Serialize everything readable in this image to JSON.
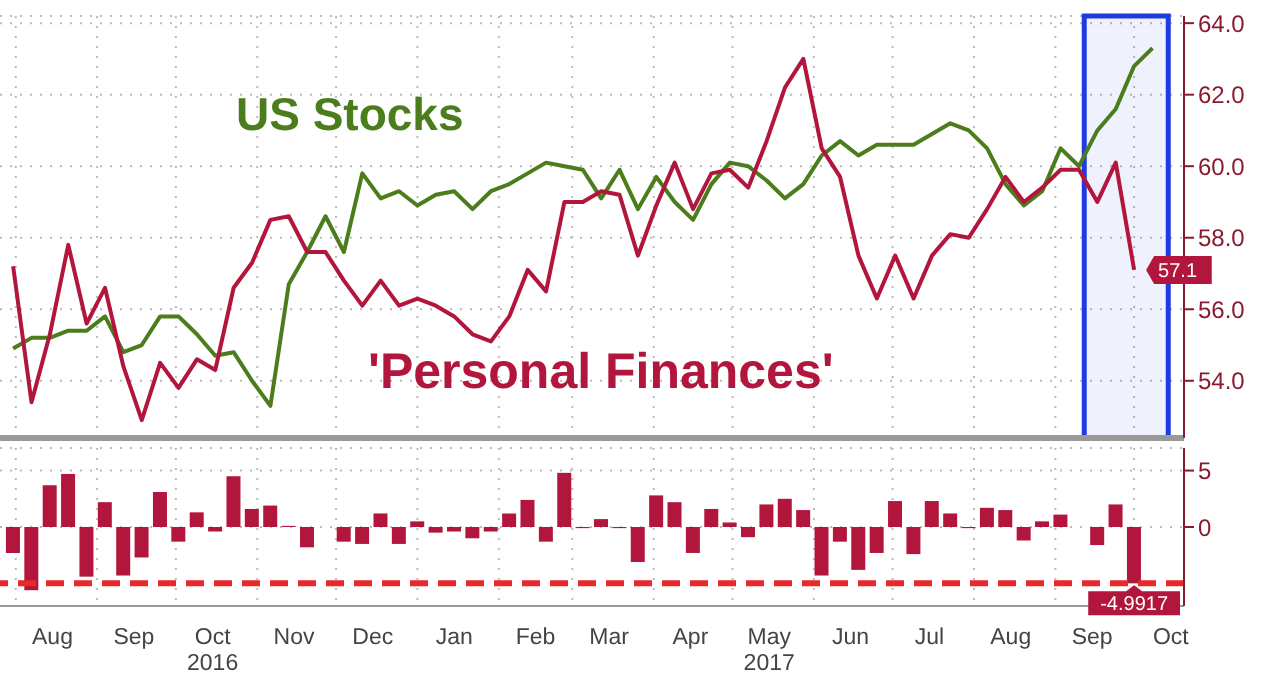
{
  "chart_data": [
    {
      "type": "line",
      "tick_labels": "y",
      "grid": true,
      "legend": false,
      "xlim": [
        "2016-07-26",
        "2017-10-20"
      ],
      "xticks": [
        {
          "value": "2016-08-01",
          "label": null
        },
        {
          "value": "2016-09-01",
          "label": null
        },
        {
          "value": "2016-10-01",
          "label": null
        },
        {
          "value": "2016-11-01",
          "label": null
        },
        {
          "value": "2016-12-01",
          "label": null
        },
        {
          "value": "2017-01-01",
          "label": null
        },
        {
          "value": "2017-02-01",
          "label": null
        },
        {
          "value": "2017-03-01",
          "label": null
        },
        {
          "value": "2017-04-01",
          "label": null
        },
        {
          "value": "2017-05-01",
          "label": null
        },
        {
          "value": "2017-06-01",
          "label": null
        },
        {
          "value": "2017-07-01",
          "label": null
        },
        {
          "value": "2017-08-01",
          "label": null
        },
        {
          "value": "2017-09-01",
          "label": null
        },
        {
          "value": "2017-10-01",
          "label": null
        }
      ],
      "ylim": [
        52.4,
        64.2
      ],
      "yticks": [
        {
          "value": 54,
          "label": "54.0"
        },
        {
          "value": 56,
          "label": "56.0"
        },
        {
          "value": 58,
          "label": "58.0"
        },
        {
          "value": 60,
          "label": "60.0"
        },
        {
          "value": 62,
          "label": "62.0"
        },
        {
          "value": 64,
          "label": "64.0"
        }
      ],
      "x": [
        "2016-07-31",
        "2016-08-07",
        "2016-08-14",
        "2016-08-21",
        "2016-08-28",
        "2016-09-04",
        "2016-09-11",
        "2016-09-18",
        "2016-09-25",
        "2016-10-02",
        "2016-10-09",
        "2016-10-16",
        "2016-10-23",
        "2016-10-30",
        "2016-11-06",
        "2016-11-13",
        "2016-11-20",
        "2016-11-27",
        "2016-12-04",
        "2016-12-11",
        "2016-12-18",
        "2016-12-25",
        "2017-01-01",
        "2017-01-08",
        "2017-01-15",
        "2017-01-22",
        "2017-01-29",
        "2017-02-05",
        "2017-02-12",
        "2017-02-19",
        "2017-02-26",
        "2017-03-05",
        "2017-03-12",
        "2017-03-19",
        "2017-03-26",
        "2017-04-02",
        "2017-04-09",
        "2017-04-16",
        "2017-04-23",
        "2017-04-30",
        "2017-05-07",
        "2017-05-14",
        "2017-05-21",
        "2017-05-28",
        "2017-06-04",
        "2017-06-11",
        "2017-06-18",
        "2017-06-25",
        "2017-07-02",
        "2017-07-09",
        "2017-07-16",
        "2017-07-23",
        "2017-07-30",
        "2017-08-06",
        "2017-08-13",
        "2017-08-20",
        "2017-08-27",
        "2017-09-03",
        "2017-09-10",
        "2017-09-17",
        "2017-09-24",
        "2017-10-01",
        "2017-10-08"
      ],
      "series": [
        {
          "name": "US Stocks",
          "color": "#4b7d1d",
          "values": [
            54.9,
            55.2,
            55.2,
            55.4,
            55.4,
            55.8,
            54.8,
            55.0,
            55.8,
            55.8,
            55.3,
            54.7,
            54.8,
            54.0,
            53.3,
            56.7,
            57.6,
            58.6,
            57.6,
            59.8,
            59.1,
            59.3,
            58.9,
            59.2,
            59.3,
            58.8,
            59.3,
            59.5,
            59.8,
            60.1,
            60.0,
            59.9,
            59.1,
            59.9,
            58.8,
            59.7,
            59.0,
            58.5,
            59.5,
            60.1,
            60.0,
            59.6,
            59.1,
            59.5,
            60.3,
            60.7,
            60.3,
            60.6,
            60.6,
            60.6,
            60.9,
            61.2,
            61.0,
            60.5,
            59.5,
            58.9,
            59.3,
            60.5,
            60.0,
            61.0,
            61.6,
            62.8,
            63.3
          ]
        },
        {
          "name": "'Personal Finances'",
          "color": "#b3163c",
          "values": [
            57.2,
            53.4,
            55.3,
            57.8,
            55.6,
            56.6,
            54.4,
            52.9,
            54.5,
            53.8,
            54.6,
            54.3,
            56.6,
            57.3,
            58.5,
            58.6,
            57.6,
            57.6,
            56.8,
            56.1,
            56.8,
            56.1,
            56.3,
            56.1,
            55.8,
            55.3,
            55.1,
            55.8,
            57.1,
            56.5,
            59.0,
            59.0,
            59.3,
            59.2,
            57.5,
            58.9,
            60.1,
            58.8,
            59.8,
            59.9,
            59.4,
            60.7,
            62.2,
            63.0,
            60.5,
            59.7,
            57.5,
            56.3,
            57.5,
            56.3,
            57.5,
            58.1,
            58.0,
            58.8,
            59.7,
            59.0,
            59.4,
            59.9,
            59.9,
            59.0,
            60.1,
            57.1,
            null
          ],
          "value_labels": [
            null,
            null,
            null,
            null,
            null,
            null,
            null,
            null,
            null,
            null,
            null,
            null,
            null,
            null,
            null,
            null,
            null,
            null,
            null,
            null,
            null,
            null,
            null,
            null,
            null,
            null,
            null,
            null,
            null,
            null,
            null,
            null,
            null,
            null,
            null,
            null,
            null,
            null,
            null,
            null,
            null,
            null,
            null,
            null,
            null,
            null,
            null,
            null,
            null,
            null,
            null,
            null,
            null,
            null,
            null,
            null,
            null,
            null,
            null,
            null,
            null,
            "57.1",
            null
          ]
        }
      ],
      "bands": [
        {
          "axis": "x",
          "from": "2017-09-12",
          "to": "2017-10-14",
          "color": "#1f3be0"
        }
      ]
    },
    {
      "type": "bar",
      "grid": true,
      "color": "#b3163c",
      "xlim": [
        "2016-07-26",
        "2017-10-20"
      ],
      "xticks": [
        {
          "value": "2016-08-01",
          "label": null
        },
        {
          "value": "2016-08-15",
          "label": "Aug"
        },
        {
          "value": "2016-09-01",
          "label": null
        },
        {
          "value": "2016-09-15",
          "label": "Sep"
        },
        {
          "value": "2016-10-01",
          "label": null
        },
        {
          "value": "2016-10-15",
          "label": "Oct\n2016"
        },
        {
          "value": "2016-11-01",
          "label": null
        },
        {
          "value": "2016-11-15",
          "label": "Nov"
        },
        {
          "value": "2016-12-01",
          "label": null
        },
        {
          "value": "2016-12-15",
          "label": "Dec"
        },
        {
          "value": "2017-01-01",
          "label": null
        },
        {
          "value": "2017-01-15",
          "label": "Jan"
        },
        {
          "value": "2017-02-01",
          "label": null
        },
        {
          "value": "2017-02-15",
          "label": "Feb"
        },
        {
          "value": "2017-03-01",
          "label": null
        },
        {
          "value": "2017-03-15",
          "label": "Mar"
        },
        {
          "value": "2017-04-01",
          "label": null
        },
        {
          "value": "2017-04-15",
          "label": "Apr"
        },
        {
          "value": "2017-05-01",
          "label": null
        },
        {
          "value": "2017-05-15",
          "label": "May\n2017"
        },
        {
          "value": "2017-06-01",
          "label": null
        },
        {
          "value": "2017-06-15",
          "label": "Jun"
        },
        {
          "value": "2017-07-01",
          "label": null
        },
        {
          "value": "2017-07-15",
          "label": "Jul"
        },
        {
          "value": "2017-08-01",
          "label": null
        },
        {
          "value": "2017-08-15",
          "label": "Aug"
        },
        {
          "value": "2017-09-01",
          "label": null
        },
        {
          "value": "2017-09-15",
          "label": "Sep"
        },
        {
          "value": "2017-10-01",
          "label": null
        },
        {
          "value": "2017-10-15",
          "label": "Oct"
        }
      ],
      "ylim": [
        -7,
        7
      ],
      "yticks": [
        5,
        0
      ],
      "x": [
        "2016-07-31",
        "2016-08-07",
        "2016-08-14",
        "2016-08-21",
        "2016-08-28",
        "2016-09-04",
        "2016-09-11",
        "2016-09-18",
        "2016-09-25",
        "2016-10-02",
        "2016-10-09",
        "2016-10-16",
        "2016-10-23",
        "2016-10-30",
        "2016-11-06",
        "2016-11-13",
        "2016-11-20",
        "2016-11-27",
        "2016-12-04",
        "2016-12-11",
        "2016-12-18",
        "2016-12-25",
        "2017-01-01",
        "2017-01-08",
        "2017-01-15",
        "2017-01-22",
        "2017-01-29",
        "2017-02-05",
        "2017-02-12",
        "2017-02-19",
        "2017-02-26",
        "2017-03-05",
        "2017-03-12",
        "2017-03-19",
        "2017-03-26",
        "2017-04-02",
        "2017-04-09",
        "2017-04-16",
        "2017-04-23",
        "2017-04-30",
        "2017-05-07",
        "2017-05-14",
        "2017-05-21",
        "2017-05-28",
        "2017-06-04",
        "2017-06-11",
        "2017-06-18",
        "2017-06-25",
        "2017-07-02",
        "2017-07-09",
        "2017-07-16",
        "2017-07-23",
        "2017-07-30",
        "2017-08-06",
        "2017-08-13",
        "2017-08-20",
        "2017-08-27",
        "2017-09-03",
        "2017-09-10",
        "2017-09-17",
        "2017-09-24",
        "2017-10-01"
      ],
      "values": [
        -2.3,
        -5.6,
        3.7,
        4.7,
        -4.4,
        2.2,
        -4.3,
        -2.7,
        3.1,
        -1.3,
        1.3,
        -0.4,
        4.5,
        1.6,
        1.9,
        0.1,
        -1.8,
        0,
        -1.3,
        -1.5,
        1.2,
        -1.5,
        0.5,
        -0.5,
        -0.4,
        -1.0,
        -0.4,
        1.2,
        2.4,
        -1.3,
        4.8,
        -0.1,
        0.7,
        -0.1,
        -3.1,
        2.8,
        2.2,
        -2.3,
        1.6,
        0.4,
        -0.9,
        2.0,
        2.5,
        1.5,
        -4.3,
        -1.3,
        -3.8,
        -2.3,
        2.3,
        -2.4,
        2.3,
        1.2,
        -0.1,
        1.7,
        1.5,
        -1.2,
        0.5,
        1.1,
        0,
        -1.6,
        2.0,
        -4.9917
      ],
      "value_labels": [
        null,
        null,
        null,
        null,
        null,
        null,
        null,
        null,
        null,
        null,
        null,
        null,
        null,
        null,
        null,
        null,
        null,
        null,
        null,
        null,
        null,
        null,
        null,
        null,
        null,
        null,
        null,
        null,
        null,
        null,
        null,
        null,
        null,
        null,
        null,
        null,
        null,
        null,
        null,
        null,
        null,
        null,
        null,
        null,
        null,
        null,
        null,
        null,
        null,
        null,
        null,
        null,
        null,
        null,
        null,
        null,
        null,
        null,
        null,
        null,
        null,
        "-4.9917"
      ],
      "ref_lines": [
        {
          "axis": "y",
          "value": -4.9917,
          "color": "#e8282b",
          "line_style": "dashed"
        }
      ]
    }
  ]
}
